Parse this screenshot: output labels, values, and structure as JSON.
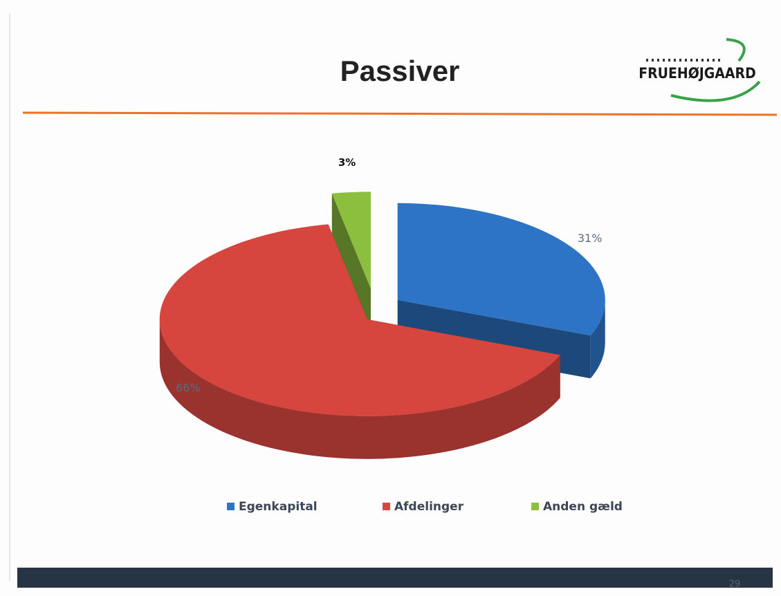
{
  "chart_data": {
    "type": "pie",
    "title": "Passiver",
    "categories": [
      "Egenkapital",
      "Afdelinger",
      "Anden gæld"
    ],
    "values": [
      31,
      66,
      3
    ],
    "value_labels": [
      "31%",
      "66%",
      "3%"
    ],
    "colors": [
      "#2e74c6",
      "#d6463f",
      "#8dbf3f"
    ],
    "legend": "bottom"
  },
  "logo": "FRUEHØJGAARD",
  "page_number": "29"
}
